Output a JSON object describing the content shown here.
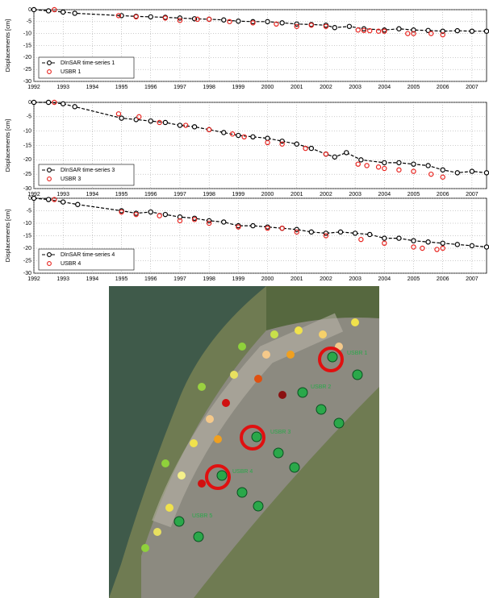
{
  "chart_data": [
    {
      "type": "line",
      "ylabel": "Displacements [cm]",
      "xlim": [
        1992,
        2007.5
      ],
      "ylim": [
        -30,
        0
      ],
      "xticks": [
        1992,
        1993,
        1994,
        1995,
        1996,
        1997,
        1998,
        1999,
        2000,
        2001,
        2002,
        2003,
        2004,
        2005,
        2006,
        2007
      ],
      "yticks": [
        0,
        -5,
        -10,
        -15,
        -20,
        -25,
        -30
      ],
      "grid": true,
      "legend": "lower-left",
      "series": [
        {
          "name": "DInSAR time-series 1",
          "color": "#000000",
          "style": "line-marker",
          "x": [
            1992,
            1992.5,
            1993,
            1993.4,
            1995,
            1995.5,
            1996,
            1996.5,
            1997,
            1997.5,
            1998,
            1998.5,
            1999,
            1999.5,
            2000,
            2000.5,
            2001,
            2001.5,
            2002,
            2002.3,
            2002.8,
            2003.3,
            2004,
            2004.5,
            2005,
            2005.5,
            2006,
            2006.5,
            2007,
            2007.5
          ],
          "values": [
            0,
            -0.5,
            -1,
            -1.5,
            -2.5,
            -2.8,
            -3,
            -3.2,
            -3.5,
            -3.8,
            -4,
            -4.3,
            -4.8,
            -5,
            -5,
            -5.5,
            -6,
            -6.2,
            -6.5,
            -7.5,
            -7,
            -8,
            -8.5,
            -8,
            -8.5,
            -8.7,
            -9,
            -8.8,
            -9,
            -9
          ]
        },
        {
          "name": "USBR 1",
          "color": "#e8231e",
          "style": "marker",
          "x": [
            1992.7,
            1994.9,
            1995.5,
            1996.5,
            1997,
            1997.6,
            1998,
            1998.7,
            1999.5,
            2000.3,
            2001,
            2001.5,
            2002,
            2003.1,
            2003.3,
            2003.5,
            2003.8,
            2004,
            2004.8,
            2005,
            2005.6,
            2006
          ],
          "values": [
            0,
            -2.5,
            -3,
            -3.5,
            -4.5,
            -4,
            -4,
            -5,
            -5.5,
            -6,
            -7,
            -6.5,
            -7,
            -8.5,
            -8.7,
            -8.8,
            -9,
            -9,
            -10,
            -10,
            -10,
            -10.5
          ]
        }
      ]
    },
    {
      "type": "line",
      "ylabel": "Displacements [cm]",
      "xlim": [
        1992,
        2007.5
      ],
      "ylim": [
        -30,
        0
      ],
      "xticks": [
        1992,
        1993,
        1994,
        1995,
        1996,
        1997,
        1998,
        1999,
        2000,
        2001,
        2002,
        2003,
        2004,
        2005,
        2006,
        2007
      ],
      "yticks": [
        0,
        -5,
        -10,
        -15,
        -20,
        -25,
        -30
      ],
      "grid": true,
      "legend": "lower-left",
      "series": [
        {
          "name": "DInSAR time-series 3",
          "color": "#000000",
          "style": "line-marker",
          "x": [
            1992,
            1992.5,
            1993,
            1993.4,
            1995,
            1995.5,
            1996,
            1996.5,
            1997,
            1997.5,
            1998,
            1998.5,
            1999,
            1999.5,
            2000,
            2000.5,
            2001,
            2001.5,
            2002,
            2002.3,
            2002.7,
            2003.2,
            2004,
            2004.5,
            2005,
            2005.5,
            2006,
            2006.5,
            2007,
            2007.5
          ],
          "values": [
            0,
            0,
            -0.5,
            -1.5,
            -5.5,
            -6,
            -6.5,
            -7,
            -8,
            -8.5,
            -9.5,
            -10.5,
            -11.5,
            -12,
            -12.5,
            -13.5,
            -14.5,
            -16,
            -18,
            -19,
            -17.5,
            -20,
            -21,
            -21,
            -21.5,
            -22,
            -23.5,
            -24.5,
            -24,
            -24.5
          ]
        },
        {
          "name": "USBR 3",
          "color": "#e8231e",
          "style": "marker",
          "x": [
            1992.7,
            1994.9,
            1995.6,
            1996.3,
            1997.2,
            1998,
            1998.8,
            1999.2,
            2000,
            2000.5,
            2001.3,
            2002,
            2003.1,
            2003.4,
            2003.8,
            2004,
            2004.5,
            2005,
            2005.6,
            2006
          ],
          "values": [
            0,
            -4,
            -5,
            -7,
            -8,
            -9.5,
            -11,
            -12,
            -14,
            -14.5,
            -16,
            -18,
            -21.5,
            -22,
            -22.5,
            -23,
            -23.5,
            -24,
            -25,
            -26
          ]
        }
      ]
    },
    {
      "type": "line",
      "ylabel": "Displacements [cm]",
      "xlim": [
        1992,
        2007.5
      ],
      "ylim": [
        -30,
        0
      ],
      "xticks": [
        1992,
        1993,
        1994,
        1995,
        1996,
        1997,
        1998,
        1999,
        2000,
        2001,
        2002,
        2003,
        2004,
        2005,
        2006,
        2007
      ],
      "yticks": [
        0,
        -5,
        -10,
        -15,
        -20,
        -25,
        -30
      ],
      "grid": true,
      "legend": "lower-left",
      "series": [
        {
          "name": "DInSAR time-series 4",
          "color": "#000000",
          "style": "line-marker",
          "x": [
            1992,
            1992.5,
            1993,
            1993.5,
            1995,
            1995.5,
            1996,
            1996.5,
            1997,
            1997.5,
            1998,
            1998.5,
            1999,
            1999.5,
            2000,
            2000.5,
            2001,
            2001.5,
            2002,
            2002.5,
            2003,
            2003.5,
            2004,
            2004.5,
            2005,
            2005.5,
            2006,
            2006.5,
            2007,
            2007.5
          ],
          "values": [
            0,
            -0.5,
            -1.5,
            -2.5,
            -5,
            -6,
            -5.5,
            -6.5,
            -7.5,
            -8,
            -9,
            -9.5,
            -11,
            -11,
            -11.5,
            -12,
            -12.5,
            -13.5,
            -14,
            -13.5,
            -14,
            -14.5,
            -16,
            -16,
            -17,
            -17.5,
            -18,
            -18.5,
            -19,
            -19.5
          ]
        },
        {
          "name": "USBR 4",
          "color": "#e8231e",
          "style": "marker",
          "x": [
            1992.7,
            1995,
            1995.5,
            1996.3,
            1997,
            1997.5,
            1998,
            1999,
            2000,
            2000.5,
            2001,
            2002,
            2003.2,
            2004,
            2005,
            2005.3,
            2005.8,
            2006
          ],
          "values": [
            -0.5,
            -5.5,
            -6.5,
            -7,
            -9,
            -8.5,
            -10,
            -11.5,
            -12,
            -12,
            -13.5,
            -15,
            -16.5,
            -18,
            -19.5,
            -20,
            -20.5,
            -20
          ]
        }
      ]
    }
  ],
  "map": {
    "labels": [
      "USBR 1",
      "USBR 2",
      "USBR 3",
      "USBR 4",
      "USBR 5"
    ]
  }
}
